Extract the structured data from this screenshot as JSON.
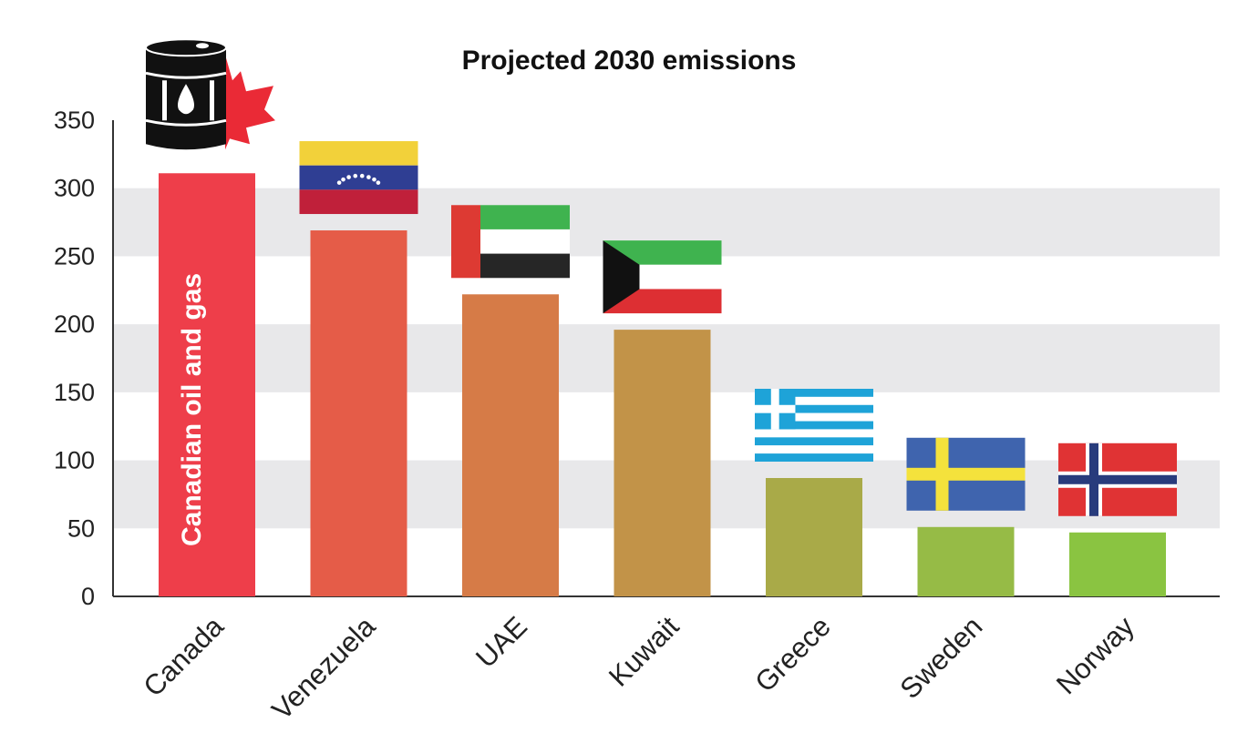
{
  "chart_data": {
    "type": "bar",
    "title": "Projected 2030 emissions",
    "xlabel": "",
    "ylabel": "",
    "categories": [
      "Canada",
      "Venezuela",
      "UAE",
      "Kuwait",
      "Greece",
      "Sweden",
      "Norway"
    ],
    "values": [
      311,
      269,
      222,
      196,
      87,
      51,
      47
    ],
    "ylim": [
      0,
      350
    ],
    "yticks": [
      0,
      50,
      100,
      150,
      200,
      250,
      300,
      350
    ],
    "grid": "alternating horizontal bands",
    "legend": "none",
    "bar_colors": [
      "#ee3e4a",
      "#e55c48",
      "#d67b47",
      "#c29348",
      "#a9aa48",
      "#96bb46",
      "#8ac441"
    ],
    "annotations": [
      {
        "category": "Canada",
        "text": "Canadian oil and gas"
      }
    ],
    "flag_icons": [
      "canada-oil-barrel-icon",
      "venezuela-flag-icon",
      "uae-flag-icon",
      "kuwait-flag-icon",
      "greece-flag-icon",
      "sweden-flag-icon",
      "norway-flag-icon"
    ]
  }
}
